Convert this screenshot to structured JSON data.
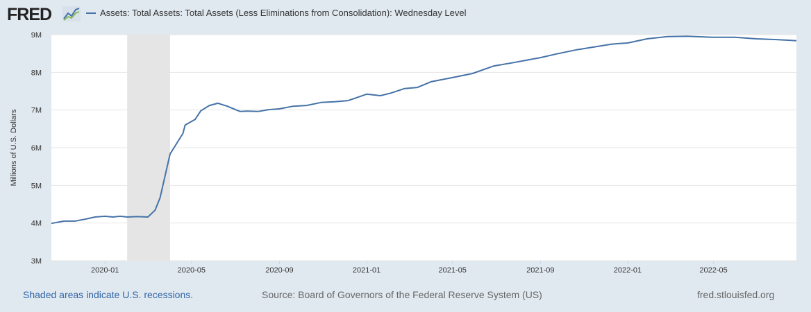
{
  "brand": {
    "logo_text": "FRED"
  },
  "footer": {
    "recession_note": "Shaded areas indicate U.S. recessions.",
    "source": "Source: Board of Governors of the Federal Reserve System (US)",
    "site": "fred.stlouisfed.org"
  },
  "colors": {
    "series": "#4572a7",
    "recession": "#e5e5e5",
    "background": "#e1e9f0"
  },
  "chart_data": {
    "type": "line",
    "title": "",
    "xlabel": "",
    "ylabel": "Millions of U.S. Dollars",
    "ylim": [
      3,
      9
    ],
    "xlim": [
      "2019-10-18",
      "2022-08-25"
    ],
    "grid": true,
    "legend_placement": "top-left",
    "yticks": [
      {
        "value": 3,
        "label": "3M"
      },
      {
        "value": 4,
        "label": "4M"
      },
      {
        "value": 5,
        "label": "5M"
      },
      {
        "value": 6,
        "label": "6M"
      },
      {
        "value": 7,
        "label": "7M"
      },
      {
        "value": 8,
        "label": "8M"
      },
      {
        "value": 9,
        "label": "9M"
      }
    ],
    "xticks": [
      {
        "date": "2020-01-01",
        "label": "2020-01"
      },
      {
        "date": "2020-05-01",
        "label": "2020-05"
      },
      {
        "date": "2020-09-01",
        "label": "2020-09"
      },
      {
        "date": "2021-01-01",
        "label": "2021-01"
      },
      {
        "date": "2021-05-01",
        "label": "2021-05"
      },
      {
        "date": "2021-09-01",
        "label": "2021-09"
      },
      {
        "date": "2022-01-01",
        "label": "2022-01"
      },
      {
        "date": "2022-05-01",
        "label": "2022-05"
      }
    ],
    "recessions": [
      [
        "2020-02-01",
        "2020-04-01"
      ]
    ],
    "series": [
      {
        "name": "Assets: Total Assets: Total Assets (Less Eliminations from Consolidation): Wednesday Level",
        "unit": "Millions of U.S. Dollars (values in millions of millions shown as M)",
        "x": [
          "2019-10-18",
          "2019-11-05",
          "2019-11-20",
          "2019-12-04",
          "2019-12-18",
          "2020-01-01",
          "2020-01-12",
          "2020-01-22",
          "2020-02-01",
          "2020-02-15",
          "2020-03-01",
          "2020-03-11",
          "2020-03-18",
          "2020-04-01",
          "2020-04-19",
          "2020-04-22",
          "2020-05-06",
          "2020-05-14",
          "2020-05-26",
          "2020-06-07",
          "2020-06-20",
          "2020-07-08",
          "2020-07-18",
          "2020-08-02",
          "2020-08-17",
          "2020-09-01",
          "2020-09-20",
          "2020-10-09",
          "2020-10-29",
          "2020-11-17",
          "2020-12-06",
          "2021-01-01",
          "2021-01-20",
          "2021-02-04",
          "2021-02-23",
          "2021-03-13",
          "2021-04-01",
          "2021-05-01",
          "2021-05-29",
          "2021-06-28",
          "2021-07-26",
          "2021-09-01",
          "2021-09-24",
          "2021-10-22",
          "2021-11-21",
          "2021-12-10",
          "2022-01-01",
          "2022-01-28",
          "2022-02-26",
          "2022-03-25",
          "2022-05-01",
          "2022-05-31",
          "2022-06-30",
          "2022-07-28",
          "2022-08-25"
        ],
        "values": [
          3.99,
          4.05,
          4.05,
          4.1,
          4.16,
          4.18,
          4.16,
          4.18,
          4.16,
          4.17,
          4.16,
          4.34,
          4.67,
          5.83,
          6.38,
          6.6,
          6.75,
          6.98,
          7.12,
          7.18,
          7.1,
          6.96,
          6.97,
          6.96,
          7.01,
          7.03,
          7.1,
          7.12,
          7.2,
          7.22,
          7.25,
          7.42,
          7.38,
          7.45,
          7.57,
          7.6,
          7.75,
          7.86,
          7.97,
          8.17,
          8.26,
          8.39,
          8.49,
          8.6,
          8.69,
          8.75,
          8.78,
          8.89,
          8.95,
          8.96,
          8.93,
          8.93,
          8.89,
          8.87,
          8.84
        ]
      }
    ]
  }
}
